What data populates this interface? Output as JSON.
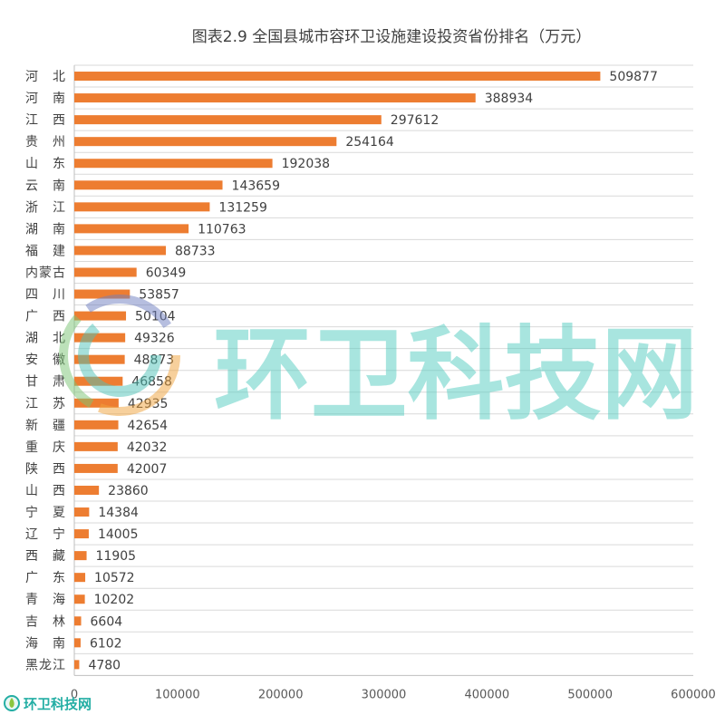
{
  "chart_data": {
    "type": "bar",
    "orientation": "horizontal",
    "title": "图表2.9 全国县城市容环卫设施建设投资省份排名（万元）",
    "categories": [
      "河 北",
      "河 南",
      "江 西",
      "贵 州",
      "山 东",
      "云 南",
      "浙 江",
      "湖 南",
      "福 建",
      "内蒙古",
      "四 川",
      "广 西",
      "湖 北",
      "安 徽",
      "甘 肃",
      "江 苏",
      "新 疆",
      "重 庆",
      "陕 西",
      "山 西",
      "宁 夏",
      "辽 宁",
      "西 藏",
      "广 东",
      "青 海",
      "吉 林",
      "海 南",
      "黑龙江"
    ],
    "values": [
      509877,
      388934,
      297612,
      254164,
      192038,
      143659,
      131259,
      110763,
      88733,
      60349,
      53857,
      50104,
      49326,
      48873,
      46858,
      42935,
      42654,
      42032,
      42007,
      23860,
      14384,
      14005,
      11905,
      10572,
      10202,
      6604,
      6102,
      4780
    ],
    "xlim": [
      0,
      600000
    ],
    "xticks": [
      0,
      100000,
      200000,
      300000,
      400000,
      500000,
      600000
    ],
    "grid": true,
    "data_labels": true,
    "bar_color": "#ED7D31"
  },
  "watermark": {
    "text": "环卫科技网"
  },
  "footer_logo": {
    "text": "环卫科技网"
  },
  "colors": {
    "gridline": "#d9d9d9",
    "axis": "#bfbfbf",
    "watermark": "#52cbbf"
  }
}
